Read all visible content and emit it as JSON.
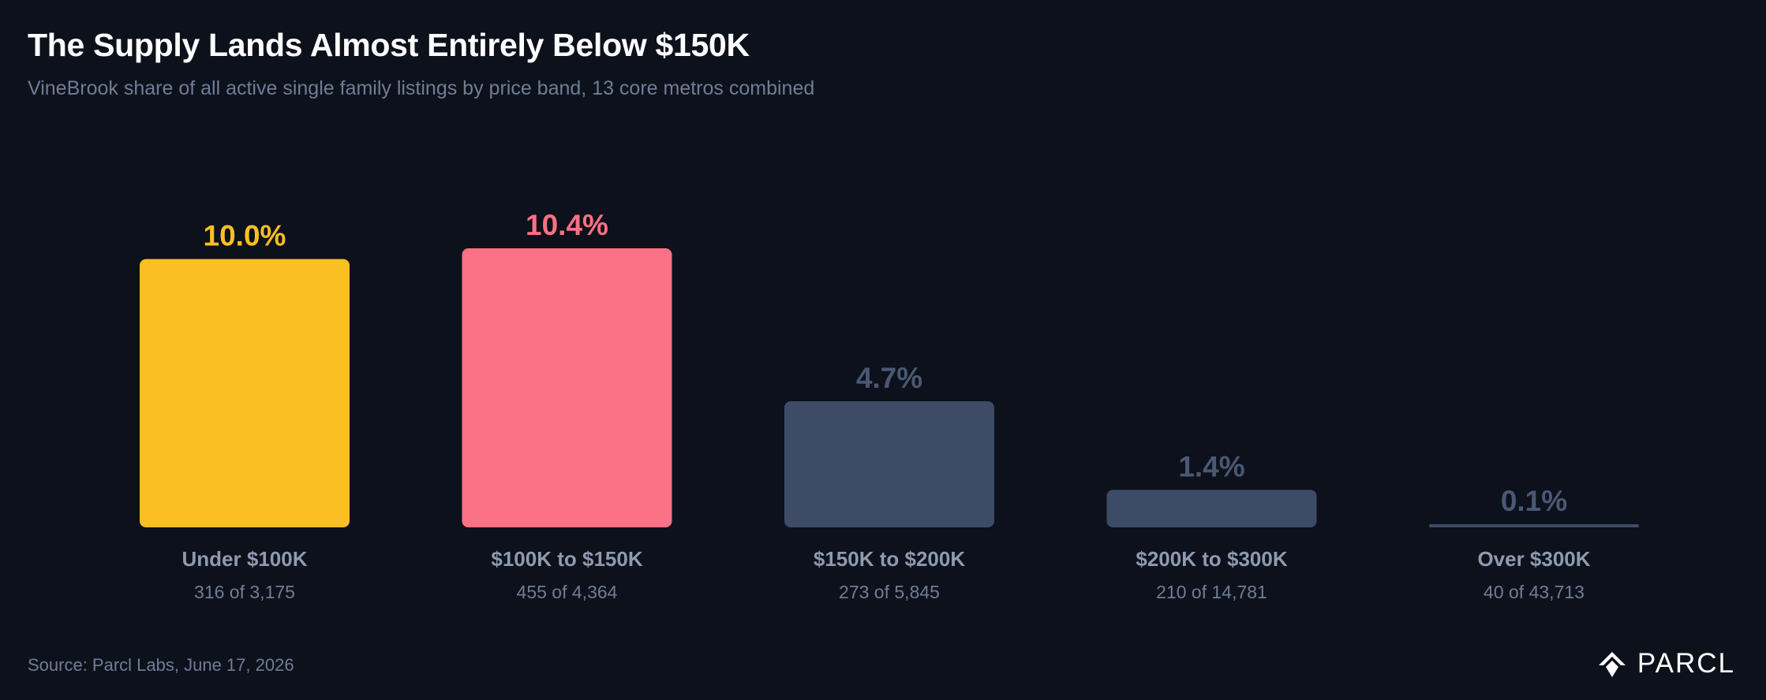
{
  "header": {
    "title": "The Supply Lands Almost Entirely Below $150K",
    "subtitle": "VineBrook share of all active single family listings by price band, 13 core metros combined"
  },
  "chart_data": {
    "type": "bar",
    "categories": [
      "Under $100K",
      "$100K to $150K",
      "$150K to $200K",
      "$200K to $300K",
      "Over $300K"
    ],
    "values": [
      10.0,
      10.4,
      4.7,
      1.4,
      0.1
    ],
    "value_labels": [
      "10.0%",
      "10.4%",
      "4.7%",
      "1.4%",
      "0.1%"
    ],
    "sublabels": [
      "316 of 3,175",
      "455 of 4,364",
      "273 of 5,845",
      "210 of 14,781",
      "40 of 43,713"
    ],
    "bar_colors": [
      "#fbbf24",
      "#fb7185",
      "#3d4b66",
      "#3d4b66",
      "#3d4b66"
    ],
    "value_label_colors": [
      "#fbbf24",
      "#fb7185",
      "#4a5873",
      "#4a5873",
      "#4a5873"
    ],
    "category_label_color": "#8e9ab0",
    "sublabel_color": "#6f7d95",
    "unit": "%",
    "ylim": [
      0,
      10.4
    ],
    "grid": false,
    "legend": "none"
  },
  "footer": {
    "source": "Source: Parcl Labs, June 17, 2026",
    "brand": "PARCL",
    "brand_icon": "parcl-logo-icon"
  }
}
